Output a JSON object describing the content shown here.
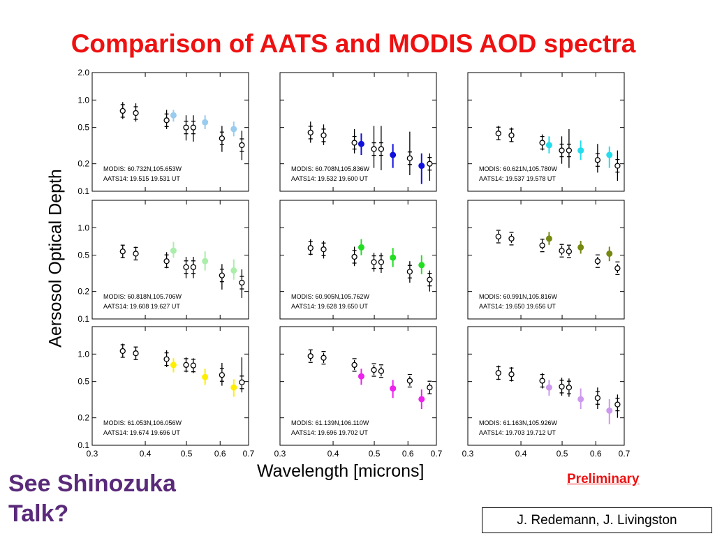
{
  "slide": {
    "title": "Comparison of AATS and MODIS AOD spectra",
    "side_note": "See Shinozuka Talk?",
    "preliminary": "Preliminary",
    "credit": "J. Redemann, J. Livingston"
  },
  "chart_data": {
    "type": "scatter",
    "grid": false,
    "yscale": "log",
    "ylabel": "Aersosol Optical Depth",
    "xlabel": "Wavelength [microns]",
    "xlim": [
      0.3,
      0.7
    ],
    "ylim": [
      0.1,
      2.0
    ],
    "xticks": [
      0.3,
      0.4,
      0.5,
      0.6,
      0.7
    ],
    "xtick_labels": [
      "0.3",
      "0.4",
      "0.5",
      "0.6",
      "0.7"
    ],
    "yticks": [
      0.1,
      0.2,
      0.5,
      1.0,
      2.0
    ],
    "ytick_labels": [
      "0.1",
      "0.2",
      "0.5",
      "1.0",
      "2.0"
    ],
    "aats_wavelengths": [
      0.354,
      0.38,
      0.449,
      0.499,
      0.519,
      0.606,
      0.675
    ],
    "modis_wavelengths": [
      0.466,
      0.553,
      0.646
    ],
    "panels": [
      {
        "modis_label": "MODIS: 60.732N,105.653W",
        "aats_label": "AATS14: 19.515 19.531 UT",
        "modis_color": "#99ccee",
        "aats": [
          [
            0.354,
            0.76,
            0.95,
            0.62
          ],
          [
            0.38,
            0.72,
            0.92,
            0.58
          ],
          [
            0.449,
            0.6,
            0.78,
            0.48
          ],
          [
            0.499,
            0.5,
            0.68,
            0.36
          ],
          [
            0.519,
            0.5,
            0.68,
            0.35
          ],
          [
            0.606,
            0.38,
            0.52,
            0.27
          ],
          [
            0.675,
            0.32,
            0.46,
            0.22
          ]
        ],
        "modis": [
          [
            0.466,
            0.68,
            0.78,
            0.58
          ],
          [
            0.553,
            0.57,
            0.68,
            0.48
          ],
          [
            0.646,
            0.48,
            0.58,
            0.4
          ]
        ]
      },
      {
        "modis_label": "MODIS: 60.708N,105.836W",
        "aats_label": "AATS14: 19.532 19.600 UT",
        "modis_color": "#1111dd",
        "aats": [
          [
            0.354,
            0.44,
            0.58,
            0.34
          ],
          [
            0.38,
            0.41,
            0.54,
            0.32
          ],
          [
            0.449,
            0.34,
            0.48,
            0.26
          ],
          [
            0.499,
            0.29,
            0.52,
            0.18
          ],
          [
            0.519,
            0.29,
            0.52,
            0.17
          ],
          [
            0.606,
            0.23,
            0.45,
            0.15
          ],
          [
            0.675,
            0.2,
            0.26,
            0.13
          ]
        ],
        "modis": [
          [
            0.466,
            0.33,
            0.43,
            0.25
          ],
          [
            0.553,
            0.25,
            0.33,
            0.18
          ],
          [
            0.646,
            0.19,
            0.26,
            0.12
          ]
        ]
      },
      {
        "modis_label": "MODIS: 60.621N,105.780W",
        "aats_label": "AATS14: 19.537 19.578 UT",
        "modis_color": "#22ddee",
        "aats": [
          [
            0.354,
            0.43,
            0.52,
            0.37
          ],
          [
            0.38,
            0.41,
            0.5,
            0.35
          ],
          [
            0.449,
            0.34,
            0.42,
            0.28
          ],
          [
            0.499,
            0.28,
            0.4,
            0.2
          ],
          [
            0.519,
            0.28,
            0.48,
            0.18
          ],
          [
            0.606,
            0.22,
            0.33,
            0.16
          ],
          [
            0.675,
            0.19,
            0.28,
            0.13
          ]
        ],
        "modis": [
          [
            0.466,
            0.32,
            0.4,
            0.26
          ],
          [
            0.553,
            0.28,
            0.36,
            0.22
          ],
          [
            0.646,
            0.25,
            0.31,
            0.18
          ]
        ]
      },
      {
        "modis_label": "MODIS: 60.818N,105.706W",
        "aats_label": "AATS14: 19.608 19.627 UT",
        "modis_color": "#aaeeaa",
        "aats": [
          [
            0.354,
            0.55,
            0.65,
            0.47
          ],
          [
            0.38,
            0.52,
            0.62,
            0.45
          ],
          [
            0.449,
            0.43,
            0.54,
            0.36
          ],
          [
            0.499,
            0.37,
            0.48,
            0.28
          ],
          [
            0.519,
            0.37,
            0.48,
            0.28
          ],
          [
            0.606,
            0.3,
            0.4,
            0.21
          ],
          [
            0.675,
            0.25,
            0.35,
            0.17
          ]
        ],
        "modis": [
          [
            0.466,
            0.56,
            0.7,
            0.47
          ],
          [
            0.553,
            0.43,
            0.55,
            0.34
          ],
          [
            0.646,
            0.34,
            0.45,
            0.27
          ]
        ]
      },
      {
        "modis_label": "MODIS: 60.905N,105.762W",
        "aats_label": "AATS14: 19.628 19.650 UT",
        "modis_color": "#22dd22",
        "aats": [
          [
            0.354,
            0.6,
            0.75,
            0.5
          ],
          [
            0.38,
            0.58,
            0.72,
            0.46
          ],
          [
            0.449,
            0.48,
            0.62,
            0.38
          ],
          [
            0.499,
            0.42,
            0.53,
            0.33
          ],
          [
            0.519,
            0.42,
            0.53,
            0.32
          ],
          [
            0.606,
            0.33,
            0.43,
            0.25
          ],
          [
            0.675,
            0.27,
            0.34,
            0.2
          ]
        ],
        "modis": [
          [
            0.466,
            0.61,
            0.75,
            0.5
          ],
          [
            0.553,
            0.47,
            0.6,
            0.37
          ],
          [
            0.646,
            0.39,
            0.5,
            0.31
          ]
        ]
      },
      {
        "modis_label": "MODIS: 60.991N,105.816W",
        "aats_label": "AATS14: 19.650 19.656 UT",
        "modis_color": "#778811",
        "aats": [
          [
            0.354,
            0.8,
            0.92,
            0.7
          ],
          [
            0.38,
            0.76,
            0.86,
            0.68
          ],
          [
            0.449,
            0.64,
            0.74,
            0.58
          ],
          [
            0.499,
            0.56,
            0.64,
            0.5
          ],
          [
            0.519,
            0.55,
            0.63,
            0.49
          ],
          [
            0.606,
            0.43,
            0.48,
            0.39
          ],
          [
            0.675,
            0.36,
            0.4,
            0.32
          ]
        ],
        "modis": [
          [
            0.466,
            0.76,
            0.9,
            0.65
          ],
          [
            0.553,
            0.61,
            0.72,
            0.52
          ],
          [
            0.646,
            0.52,
            0.62,
            0.43
          ]
        ]
      },
      {
        "modis_label": "MODIS: 61.053N,106.056W",
        "aats_label": "AATS14: 19.674 19.696 UT",
        "modis_color": "#ffee00",
        "aats": [
          [
            0.354,
            1.08,
            1.3,
            0.92
          ],
          [
            0.38,
            1.02,
            1.2,
            0.88
          ],
          [
            0.449,
            0.88,
            1.1,
            0.72
          ],
          [
            0.499,
            0.76,
            0.92,
            0.63
          ],
          [
            0.519,
            0.75,
            0.9,
            0.62
          ],
          [
            0.606,
            0.59,
            0.8,
            0.45
          ],
          [
            0.675,
            0.49,
            0.92,
            0.38
          ]
        ],
        "modis": [
          [
            0.466,
            0.76,
            0.9,
            0.63
          ],
          [
            0.553,
            0.56,
            0.69,
            0.46
          ],
          [
            0.646,
            0.43,
            0.53,
            0.34
          ]
        ]
      },
      {
        "modis_label": "MODIS: 61.139N,106.110W",
        "aats_label": "AATS14: 19.696 19.702 UT",
        "modis_color": "#ee22ee",
        "aats": [
          [
            0.354,
            0.95,
            1.1,
            0.84
          ],
          [
            0.38,
            0.91,
            1.03,
            0.8
          ],
          [
            0.449,
            0.76,
            0.86,
            0.67
          ],
          [
            0.499,
            0.67,
            0.76,
            0.59
          ],
          [
            0.519,
            0.65,
            0.73,
            0.57
          ],
          [
            0.606,
            0.51,
            0.57,
            0.45
          ],
          [
            0.675,
            0.43,
            0.48,
            0.37
          ]
        ],
        "modis": [
          [
            0.466,
            0.57,
            0.69,
            0.46
          ],
          [
            0.553,
            0.42,
            0.52,
            0.33
          ],
          [
            0.646,
            0.32,
            0.41,
            0.25
          ]
        ]
      },
      {
        "modis_label": "MODIS: 61.163N,105.926W",
        "aats_label": "AATS14: 19.703 19.712 UT",
        "modis_color": "#cc99ee",
        "aats": [
          [
            0.354,
            0.62,
            0.75,
            0.52
          ],
          [
            0.38,
            0.6,
            0.72,
            0.5
          ],
          [
            0.449,
            0.51,
            0.62,
            0.42
          ],
          [
            0.499,
            0.44,
            0.55,
            0.35
          ],
          [
            0.519,
            0.43,
            0.54,
            0.34
          ],
          [
            0.606,
            0.33,
            0.43,
            0.25
          ],
          [
            0.675,
            0.28,
            0.36,
            0.2
          ]
        ],
        "modis": [
          [
            0.466,
            0.43,
            0.52,
            0.35
          ],
          [
            0.553,
            0.32,
            0.42,
            0.25
          ],
          [
            0.646,
            0.24,
            0.32,
            0.17
          ]
        ]
      }
    ]
  }
}
